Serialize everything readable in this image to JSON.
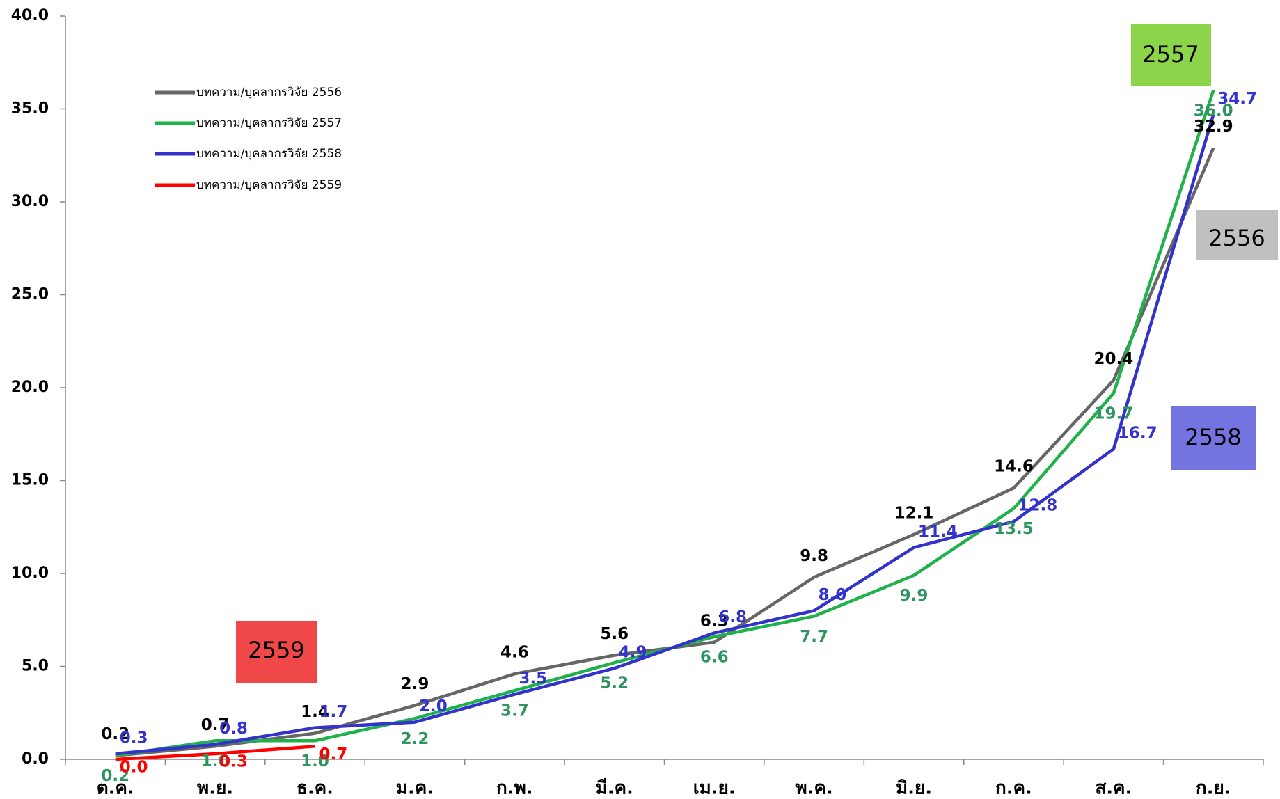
{
  "chart_data": {
    "type": "line",
    "categories": [
      "ต.ค.",
      "พ.ย.",
      "ธ.ค.",
      "ม.ค.",
      "ก.พ.",
      "มี.ค.",
      "เม.ย.",
      "พ.ค.",
      "มิ.ย.",
      "ก.ค.",
      "ส.ค.",
      "ก.ย."
    ],
    "series": [
      {
        "name": "บทความ/บุคลากรวิจัย 2556",
        "color": "#666666",
        "label_color": "#000000",
        "values": [
          0.2,
          0.7,
          1.4,
          2.9,
          4.6,
          5.6,
          6.3,
          9.8,
          12.1,
          14.6,
          20.4,
          32.9
        ],
        "value_labels": [
          "0.2",
          "0.7",
          "1.4",
          "2.9",
          "4.6",
          "5.6",
          "6.3",
          "9.8",
          "12.1",
          "14.6",
          "20.4",
          "32.9"
        ]
      },
      {
        "name": "บทความ/บุคลากรวิจัย 2557",
        "color": "#1fb24a",
        "label_color": "#2e9460",
        "values": [
          0.2,
          1.0,
          1.0,
          2.2,
          3.7,
          5.2,
          6.6,
          7.7,
          9.9,
          13.5,
          19.7,
          36.0
        ],
        "value_labels": [
          "0.2",
          "1.0",
          "1.0",
          "2.2",
          "3.7",
          "5.2",
          "6.6",
          "7.7",
          "9.9",
          "13.5",
          "19.7",
          "36.0"
        ]
      },
      {
        "name": "บทความ/บุคลากรวิจัย 2558",
        "color": "#3333cc",
        "label_color": "#3333cc",
        "values": [
          0.3,
          0.8,
          1.7,
          2.0,
          3.5,
          4.9,
          6.8,
          8.0,
          11.4,
          12.8,
          16.7,
          34.7
        ],
        "value_labels": [
          "0.3",
          "0.8",
          "1.7",
          "2.0",
          "3.5",
          "4.9",
          "6.8",
          "8.0",
          "11.4",
          "12.8",
          "16.7",
          "34.7"
        ]
      },
      {
        "name": "บทความ/บุคลากรวิจัย 2559",
        "color": "#ff0000",
        "label_color": "#ff0000",
        "values": [
          0.0,
          0.3,
          0.7,
          null,
          null,
          null,
          null,
          null,
          null,
          null,
          null,
          null
        ],
        "value_labels": [
          "0.0",
          "0.3",
          "0.7",
          null,
          null,
          null,
          null,
          null,
          null,
          null,
          null,
          null
        ]
      }
    ],
    "ylim": [
      0,
      40
    ],
    "yticks": [
      {
        "value": 0,
        "label": "0.0"
      },
      {
        "value": 5,
        "label": "5.0"
      },
      {
        "value": 10,
        "label": "10.0"
      },
      {
        "value": 15,
        "label": "15.0"
      },
      {
        "value": 20,
        "label": "20.0"
      },
      {
        "value": 25,
        "label": "25.0"
      },
      {
        "value": 30,
        "label": "30.0"
      },
      {
        "value": 35,
        "label": "35.0"
      },
      {
        "value": 40,
        "label": "40.0"
      }
    ],
    "grid": false,
    "legend": "top-left",
    "annotations": [
      {
        "text": "2557",
        "color": "#8cd44a"
      },
      {
        "text": "2556",
        "color": "#c0c0c0"
      },
      {
        "text": "2558",
        "color": "#7474e0"
      },
      {
        "text": "2559",
        "color": "#f04848"
      }
    ]
  }
}
